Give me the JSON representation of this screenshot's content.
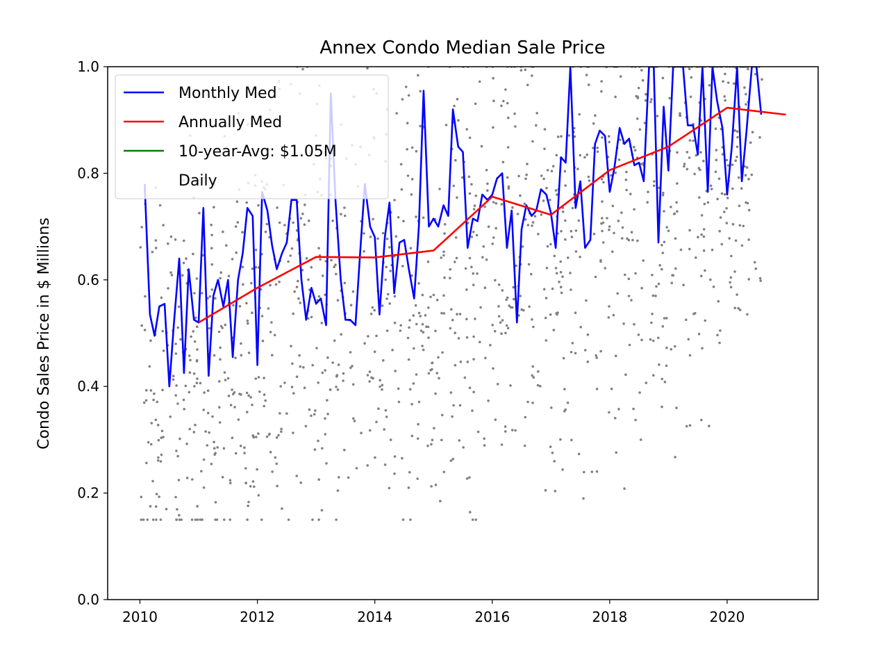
{
  "chart_data": {
    "type": "line",
    "title": "Annex Condo Median Sale Price",
    "xlabel": "",
    "ylabel": "Condo Sales Price in $ Millions",
    "xlim": [
      2009.45,
      2021.55
    ],
    "ylim": [
      0.0,
      1.0
    ],
    "x_ticks": [
      2010,
      2012,
      2014,
      2016,
      2018,
      2020
    ],
    "y_ticks": [
      0.0,
      0.2,
      0.4,
      0.6,
      0.8,
      1.0
    ],
    "x_tick_labels": [
      "2010",
      "2012",
      "2014",
      "2016",
      "2018",
      "2020"
    ],
    "y_tick_labels": [
      "0.0",
      "0.2",
      "0.4",
      "0.6",
      "0.8",
      "1.0"
    ],
    "grid": false,
    "legend_position": "top-left",
    "series": [
      {
        "name": "Monthly Med",
        "color": "#0000ff",
        "kind": "line",
        "x": [
          2010.08,
          2010.17,
          2010.25,
          2010.33,
          2010.42,
          2010.5,
          2010.58,
          2010.67,
          2010.75,
          2010.83,
          2010.92,
          2011.0,
          2011.08,
          2011.17,
          2011.25,
          2011.33,
          2011.42,
          2011.5,
          2011.58,
          2011.67,
          2011.75,
          2011.83,
          2011.92,
          2012.0,
          2012.08,
          2012.17,
          2012.25,
          2012.33,
          2012.42,
          2012.5,
          2012.58,
          2012.67,
          2012.75,
          2012.83,
          2012.92,
          2013.0,
          2013.08,
          2013.17,
          2013.25,
          2013.33,
          2013.42,
          2013.5,
          2013.58,
          2013.67,
          2013.75,
          2013.83,
          2013.92,
          2014.0,
          2014.08,
          2014.17,
          2014.25,
          2014.33,
          2014.42,
          2014.5,
          2014.58,
          2014.67,
          2014.75,
          2014.83,
          2014.92,
          2015.0,
          2015.08,
          2015.17,
          2015.25,
          2015.33,
          2015.42,
          2015.5,
          2015.58,
          2015.67,
          2015.75,
          2015.83,
          2015.92,
          2016.0,
          2016.08,
          2016.17,
          2016.25,
          2016.33,
          2016.42,
          2016.5,
          2016.58,
          2016.67,
          2016.75,
          2016.83,
          2016.92,
          2017.0,
          2017.08,
          2017.17,
          2017.25,
          2017.33,
          2017.42,
          2017.5,
          2017.58,
          2017.67,
          2017.75,
          2017.83,
          2017.92,
          2018.0,
          2018.08,
          2018.17,
          2018.25,
          2018.33,
          2018.42,
          2018.5,
          2018.58,
          2018.67,
          2018.75,
          2018.83,
          2018.92,
          2019.0,
          2019.08,
          2019.17,
          2019.25,
          2019.33,
          2019.42,
          2019.5,
          2019.58,
          2019.67,
          2019.75,
          2019.83,
          2019.92,
          2020.0,
          2020.08,
          2020.17,
          2020.25,
          2020.33,
          2020.42,
          2020.5,
          2020.58
        ],
        "y": [
          0.78,
          0.535,
          0.495,
          0.55,
          0.555,
          0.4,
          0.52,
          0.64,
          0.425,
          0.62,
          0.525,
          0.52,
          0.735,
          0.42,
          0.57,
          0.6,
          0.55,
          0.6,
          0.455,
          0.6,
          0.65,
          0.735,
          0.72,
          0.44,
          0.765,
          0.73,
          0.665,
          0.62,
          0.65,
          0.67,
          0.75,
          0.75,
          0.6,
          0.525,
          0.585,
          0.555,
          0.565,
          0.515,
          0.95,
          0.75,
          0.6,
          0.525,
          0.525,
          0.515,
          0.65,
          0.78,
          0.7,
          0.68,
          0.535,
          0.68,
          0.745,
          0.575,
          0.67,
          0.675,
          0.62,
          0.565,
          0.7,
          0.955,
          0.7,
          0.715,
          0.7,
          0.74,
          0.72,
          0.92,
          0.85,
          0.84,
          0.66,
          0.715,
          0.71,
          0.76,
          0.75,
          0.76,
          0.79,
          0.8,
          0.66,
          0.73,
          0.52,
          0.695,
          0.74,
          0.72,
          0.73,
          0.77,
          0.76,
          0.725,
          0.66,
          0.83,
          0.82,
          1.0,
          0.735,
          0.785,
          0.66,
          0.675,
          0.855,
          0.88,
          0.87,
          0.765,
          0.81,
          0.885,
          0.855,
          0.865,
          0.815,
          0.82,
          0.785,
          1.0,
          1.0,
          0.67,
          0.925,
          0.805,
          1.0,
          1.0,
          1.0,
          0.89,
          0.89,
          0.835,
          1.0,
          0.765,
          1.0,
          0.935,
          0.885,
          0.76,
          0.85,
          1.0,
          0.785,
          0.88,
          1.0,
          1.0,
          0.91
        ]
      },
      {
        "name": "Annually Med",
        "color": "#ff0000",
        "kind": "line",
        "x": [
          2011.0,
          2012.0,
          2013.0,
          2014.0,
          2015.0,
          2016.0,
          2017.0,
          2018.0,
          2019.0,
          2020.0,
          2021.0
        ],
        "y": [
          0.52,
          0.585,
          0.643,
          0.642,
          0.655,
          0.756,
          0.722,
          0.806,
          0.85,
          0.923,
          0.91
        ]
      },
      {
        "name": "10-year-Avg: $1.05M",
        "color": "#008000",
        "kind": "line",
        "x": [
          2010.0,
          2021.0
        ],
        "y": [
          1.05,
          1.05
        ]
      },
      {
        "name": "Daily",
        "color": "#808080",
        "kind": "scatter",
        "x_range": [
          2010.0,
          2020.6
        ],
        "y_range": [
          0.15,
          1.0
        ]
      }
    ]
  }
}
